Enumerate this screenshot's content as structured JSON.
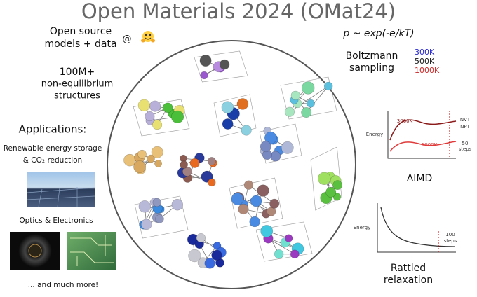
{
  "title": "Open Materials 2024 (OMat24)",
  "left": {
    "open_source": [
      "Open source",
      "models + data"
    ],
    "at": "@",
    "dataset": [
      "100M+",
      "non-equilibrium",
      "structures"
    ],
    "applications": "Applications:",
    "energy": [
      "Renewable energy storage",
      "& CO₂ reduction"
    ],
    "optics": "Optics & Electronics",
    "more": "... and much more!"
  },
  "right": {
    "formula": "p ~ exp(-e/kT)",
    "sampling": [
      "Boltzmann",
      "sampling"
    ],
    "temperatures": [
      "300K",
      "500K",
      "1000K"
    ],
    "aimd_plot": {
      "y_label": "Energy",
      "curve_labels": [
        "3000K",
        "1000K"
      ],
      "ensembles": [
        "NVT",
        "NPT"
      ],
      "steps": [
        "50",
        "steps"
      ]
    },
    "aimd": "AIMD",
    "relax_plot": {
      "y_label": "Energy",
      "steps": [
        "100",
        "steps"
      ]
    },
    "relaxation": [
      "Rattled",
      "relaxation"
    ]
  }
}
